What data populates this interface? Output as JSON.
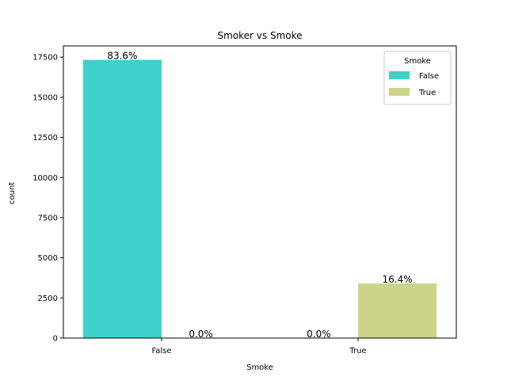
{
  "chart_data": {
    "type": "bar",
    "title": "Smoker vs Smoke",
    "xlabel": "Smoke",
    "ylabel": "count",
    "categories": [
      "False",
      "True"
    ],
    "series": [
      {
        "name": "False",
        "color": "#40d0cc",
        "values": [
          17330,
          0
        ],
        "labels": [
          "83.6%",
          "0.0%"
        ]
      },
      {
        "name": "True",
        "color": "#cdd48a",
        "values": [
          0,
          3400
        ],
        "labels": [
          "0.0%",
          "16.4%"
        ]
      }
    ],
    "ylim": [
      0,
      18200
    ],
    "yticks": [
      0,
      2500,
      5000,
      7500,
      10000,
      12500,
      15000,
      17500
    ],
    "grid": false,
    "legend": {
      "title": "Smoke",
      "placement": "top-right"
    }
  }
}
